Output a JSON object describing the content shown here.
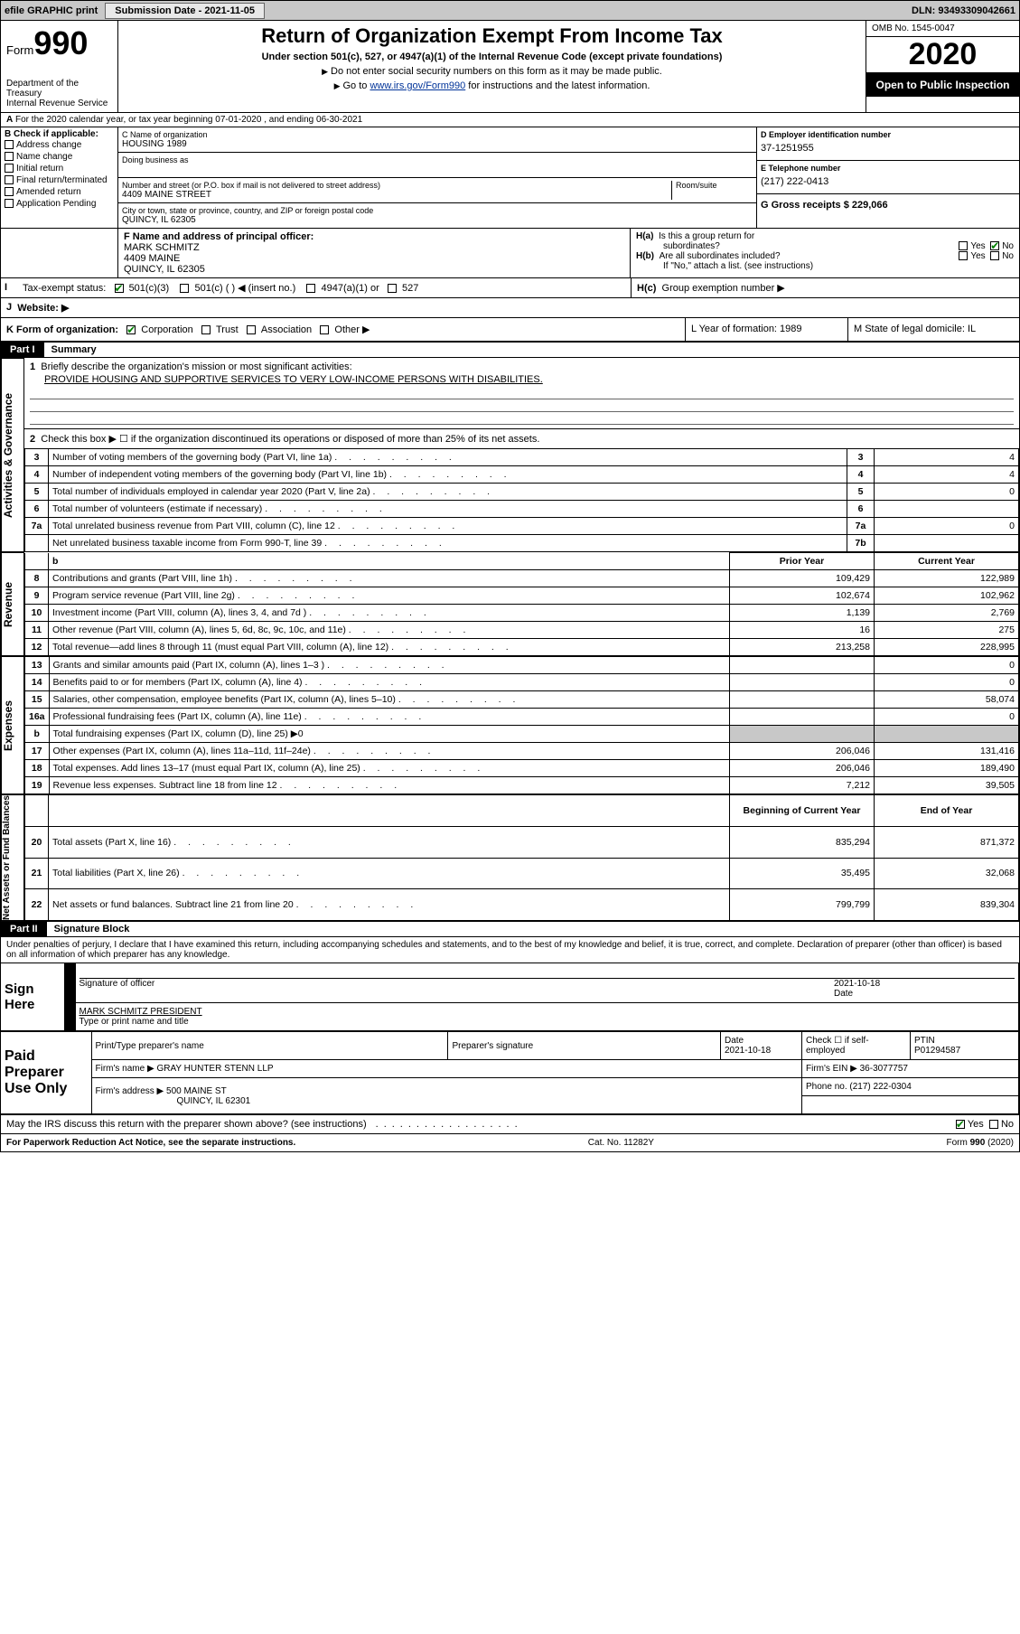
{
  "topbar": {
    "efile": "efile GRAPHIC print",
    "subLabel": "Submission Date - 2021-11-05",
    "dln": "DLN: 93493309042661"
  },
  "header": {
    "formWord": "Form",
    "formNum": "990",
    "dept": "Department of the Treasury\nInternal Revenue Service",
    "title": "Return of Organization Exempt From Income Tax",
    "sub": "Under section 501(c), 527, or 4947(a)(1) of the Internal Revenue Code (except private foundations)",
    "note1": "Do not enter social security numbers on this form as it may be made public.",
    "note2": "Go to ",
    "link": "www.irs.gov/Form990",
    "note3": " for instructions and the latest information.",
    "omb": "OMB No. 1545-0047",
    "year": "2020",
    "open": "Open to Public Inspection"
  },
  "A": {
    "line": "For the 2020 calendar year, or tax year beginning 07-01-2020    , and ending 06-30-2021"
  },
  "B": {
    "hdr": "B Check if applicable:",
    "items": [
      "Address change",
      "Name change",
      "Initial return",
      "Final return/terminated",
      "Amended return",
      "Application Pending"
    ]
  },
  "C": {
    "nameLbl": "C Name of organization",
    "name": "HOUSING 1989",
    "dba": "Doing business as",
    "streetLbl": "Number and street (or P.O. box if mail is not delivered to street address)",
    "roomLbl": "Room/suite",
    "street": "4409 MAINE STREET",
    "cityLbl": "City or town, state or province, country, and ZIP or foreign postal code",
    "city": "QUINCY, IL   62305"
  },
  "D": {
    "lbl": "D Employer identification number",
    "val": "37-1251955"
  },
  "E": {
    "lbl": "E Telephone number",
    "val": "(217) 222-0413"
  },
  "G": {
    "lbl": "G Gross receipts $ 229,066"
  },
  "F": {
    "lbl": "F  Name and address of principal officer:",
    "name": "MARK SCHMITZ",
    "addr1": "4409 MAINE",
    "addr2": "QUINCY, IL   62305"
  },
  "H": {
    "a": "Is this a group return for",
    "a2": "subordinates?",
    "b": "Are all subordinates included?",
    "note": "If \"No,\" attach a list. (see instructions)",
    "c": "Group exemption number ▶",
    "yes": "Yes",
    "no": "No"
  },
  "I": {
    "lbl": "Tax-exempt status:",
    "opts": [
      "501(c)(3)",
      "501(c) (  ) ◀ (insert no.)",
      "4947(a)(1) or",
      "527"
    ]
  },
  "J": {
    "lbl": "Website: ▶"
  },
  "K": {
    "lbl": "K Form of organization:",
    "opts": [
      "Corporation",
      "Trust",
      "Association",
      "Other ▶"
    ]
  },
  "L": {
    "lbl": "L Year of formation: 1989"
  },
  "M": {
    "lbl": "M State of legal domicile: IL"
  },
  "part1": {
    "hdr": "Part I",
    "title": "Summary"
  },
  "governance": {
    "label": "Activities & Governance",
    "l1": "Briefly describe the organization's mission or most significant activities:",
    "l1val": "PROVIDE HOUSING AND SUPPORTIVE SERVICES TO VERY LOW-INCOME PERSONS WITH DISABILITIES.",
    "l2": "Check this box ▶ ☐  if the organization discontinued its operations or disposed of more than 25% of its net assets.",
    "rows": [
      {
        "n": "3",
        "t": "Number of voting members of the governing body (Part VI, line 1a)",
        "k": "3",
        "v": "4"
      },
      {
        "n": "4",
        "t": "Number of independent voting members of the governing body (Part VI, line 1b)",
        "k": "4",
        "v": "4"
      },
      {
        "n": "5",
        "t": "Total number of individuals employed in calendar year 2020 (Part V, line 2a)",
        "k": "5",
        "v": "0"
      },
      {
        "n": "6",
        "t": "Total number of volunteers (estimate if necessary)",
        "k": "6",
        "v": ""
      },
      {
        "n": "7a",
        "t": "Total unrelated business revenue from Part VIII, column (C), line 12",
        "k": "7a",
        "v": "0"
      },
      {
        "n": "",
        "t": "Net unrelated business taxable income from Form 990-T, line 39",
        "k": "7b",
        "v": ""
      }
    ]
  },
  "revenue": {
    "label": "Revenue",
    "hdr": {
      "b": "b",
      "py": "Prior Year",
      "cy": "Current Year"
    },
    "rows": [
      {
        "n": "8",
        "t": "Contributions and grants (Part VIII, line 1h)",
        "py": "109,429",
        "cy": "122,989"
      },
      {
        "n": "9",
        "t": "Program service revenue (Part VIII, line 2g)",
        "py": "102,674",
        "cy": "102,962"
      },
      {
        "n": "10",
        "t": "Investment income (Part VIII, column (A), lines 3, 4, and 7d )",
        "py": "1,139",
        "cy": "2,769"
      },
      {
        "n": "11",
        "t": "Other revenue (Part VIII, column (A), lines 5, 6d, 8c, 9c, 10c, and 11e)",
        "py": "16",
        "cy": "275"
      },
      {
        "n": "12",
        "t": "Total revenue—add lines 8 through 11 (must equal Part VIII, column (A), line 12)",
        "py": "213,258",
        "cy": "228,995"
      }
    ]
  },
  "expenses": {
    "label": "Expenses",
    "rows": [
      {
        "n": "13",
        "t": "Grants and similar amounts paid (Part IX, column (A), lines 1–3 )",
        "py": "",
        "cy": "0"
      },
      {
        "n": "14",
        "t": "Benefits paid to or for members (Part IX, column (A), line 4)",
        "py": "",
        "cy": "0"
      },
      {
        "n": "15",
        "t": "Salaries, other compensation, employee benefits (Part IX, column (A), lines 5–10)",
        "py": "",
        "cy": "58,074"
      },
      {
        "n": "16a",
        "t": "Professional fundraising fees (Part IX, column (A), line 11e)",
        "py": "",
        "cy": "0"
      },
      {
        "n": "b",
        "t": "Total fundraising expenses (Part IX, column (D), line 25) ▶0",
        "py": "SHADE",
        "cy": "SHADE"
      },
      {
        "n": "17",
        "t": "Other expenses (Part IX, column (A), lines 11a–11d, 11f–24e)",
        "py": "206,046",
        "cy": "131,416"
      },
      {
        "n": "18",
        "t": "Total expenses. Add lines 13–17 (must equal Part IX, column (A), line 25)",
        "py": "206,046",
        "cy": "189,490"
      },
      {
        "n": "19",
        "t": "Revenue less expenses. Subtract line 18 from line 12",
        "py": "7,212",
        "cy": "39,505"
      }
    ]
  },
  "netassets": {
    "label": "Net Assets or Fund Balances",
    "hdr": {
      "py": "Beginning of Current Year",
      "cy": "End of Year"
    },
    "rows": [
      {
        "n": "20",
        "t": "Total assets (Part X, line 16)",
        "py": "835,294",
        "cy": "871,372"
      },
      {
        "n": "21",
        "t": "Total liabilities (Part X, line 26)",
        "py": "35,495",
        "cy": "32,068"
      },
      {
        "n": "22",
        "t": "Net assets or fund balances. Subtract line 21 from line 20",
        "py": "799,799",
        "cy": "839,304"
      }
    ]
  },
  "part2": {
    "hdr": "Part II",
    "title": "Signature Block"
  },
  "perjury": "Under penalties of perjury, I declare that I have examined this return, including accompanying schedules and statements, and to the best of my knowledge and belief, it is true, correct, and complete. Declaration of preparer (other than officer) is based on all information of which preparer has any knowledge.",
  "sign": {
    "here": "Sign Here",
    "sigOff": "Signature of officer",
    "date": "2021-10-18",
    "dateLbl": "Date",
    "name": "MARK SCHMITZ  PRESIDENT",
    "typeLbl": "Type or print name and title"
  },
  "paid": {
    "here": "Paid Preparer Use Only",
    "h1": "Print/Type preparer's name",
    "h2": "Preparer's signature",
    "h3": "Date",
    "date": "2021-10-18",
    "h4": "Check ☐ if self-employed",
    "h5": "PTIN",
    "ptin": "P01294587",
    "firmLbl": "Firm's name     ▶",
    "firm": "GRAY HUNTER STENN LLP",
    "einLbl": "Firm's EIN ▶",
    "ein": "36-3077757",
    "addrLbl": "Firm's address ▶",
    "addr1": "500 MAINE ST",
    "addr2": "QUINCY, IL   62301",
    "phoneLbl": "Phone no.",
    "phone": "(217) 222-0304"
  },
  "discuss": "May the IRS discuss this return with the preparer shown above? (see instructions)",
  "footer": {
    "l": "For Paperwork Reduction Act Notice, see the separate instructions.",
    "c": "Cat. No. 11282Y",
    "r": "Form 990 (2020)"
  }
}
